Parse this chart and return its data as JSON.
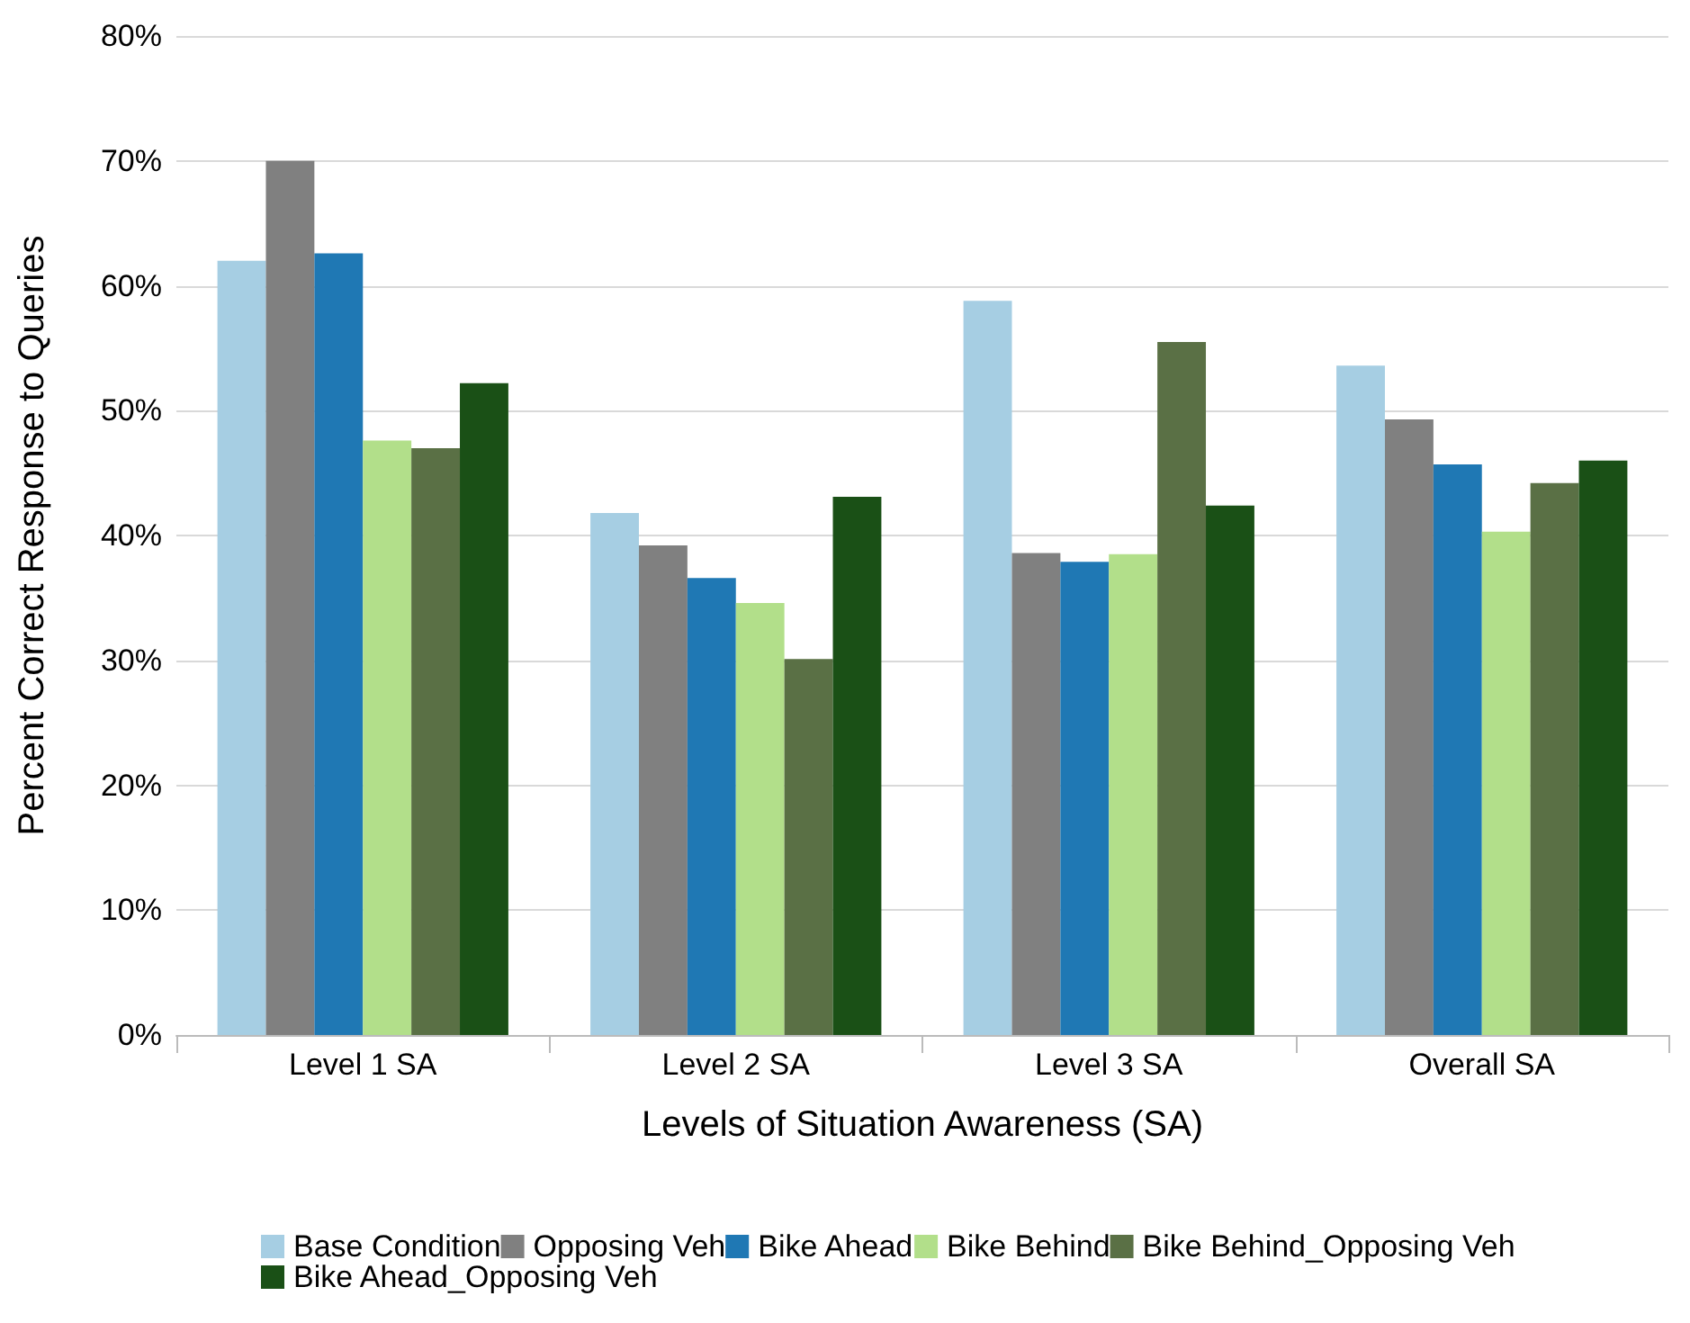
{
  "chart_data": {
    "type": "bar",
    "xlabel": "Levels of Situation Awareness (SA)",
    "ylabel": "Percent Correct Response to Queries",
    "categories": [
      "Level 1 SA",
      "Level 2 SA",
      "Level 3 SA",
      "Overall SA"
    ],
    "series": [
      {
        "name": "Base Condition",
        "color": "#a6cee3",
        "values": [
          62.0,
          41.8,
          58.8,
          53.6
        ]
      },
      {
        "name": "Opposing Veh",
        "color": "#808080",
        "values": [
          70.0,
          39.2,
          38.6,
          49.3
        ]
      },
      {
        "name": "Bike Ahead",
        "color": "#1f78b4",
        "values": [
          62.6,
          36.6,
          37.9,
          45.7
        ]
      },
      {
        "name": "Bike Behind",
        "color": "#b2df8a",
        "values": [
          47.6,
          34.6,
          38.5,
          40.3
        ]
      },
      {
        "name": "Bike Behind_Opposing Veh",
        "color": "#5a7045",
        "values": [
          47.0,
          30.1,
          55.5,
          44.2
        ]
      },
      {
        "name": "Bike Ahead_Opposing Veh",
        "color": "#1a5016",
        "values": [
          52.2,
          43.1,
          42.4,
          46.0
        ]
      }
    ],
    "ylim": [
      0,
      80
    ],
    "yticks": [
      {
        "value": 0,
        "label": "0%"
      },
      {
        "value": 10,
        "label": "10%"
      },
      {
        "value": 20,
        "label": "20%"
      },
      {
        "value": 30,
        "label": "30%"
      },
      {
        "value": 40,
        "label": "40%"
      },
      {
        "value": 50,
        "label": "50%"
      },
      {
        "value": 60,
        "label": "60%"
      },
      {
        "value": 70,
        "label": "70%"
      },
      {
        "value": 80,
        "label": "80%"
      }
    ],
    "grid": "y",
    "legend": "bottom"
  }
}
